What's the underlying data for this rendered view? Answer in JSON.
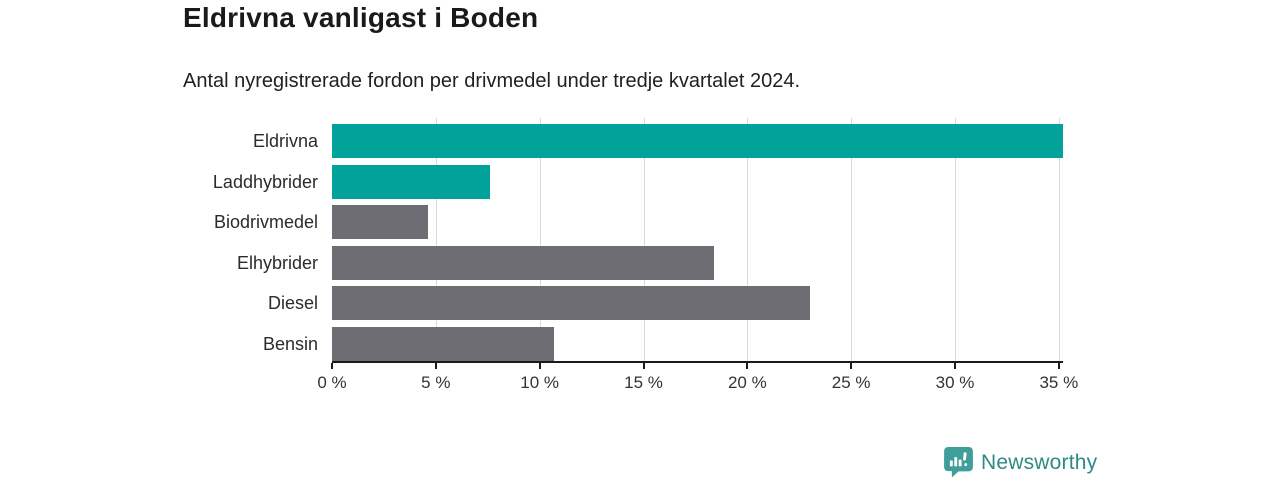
{
  "chart_data": {
    "type": "bar",
    "orientation": "horizontal",
    "title": "Eldrivna vanligast i Boden",
    "subtitle": "Antal nyregistrerade fordon per drivmedel under tredje kvartalet 2024.",
    "categories": [
      "Eldrivna",
      "Laddhybrider",
      "Biodrivmedel",
      "Elhybrider",
      "Diesel",
      "Bensin"
    ],
    "values": [
      35.2,
      7.6,
      4.6,
      18.4,
      23.0,
      10.7
    ],
    "unit": "%",
    "xlim": [
      0,
      35.2
    ],
    "x_ticks": [
      0,
      5,
      10,
      15,
      20,
      25,
      30,
      35
    ],
    "x_tick_labels": [
      "0 %",
      "5 %",
      "10 %",
      "15 %",
      "20 %",
      "25 %",
      "30 %",
      "35 %"
    ],
    "grid": true,
    "legend": "none",
    "bar_colors": [
      "#00a29a",
      "#00a29a",
      "#6d6d73",
      "#6d6d73",
      "#6d6d73",
      "#6d6d73"
    ],
    "highlight_color": "#00a29a",
    "default_color": "#6d6d73",
    "gridline_color": "#d9d9d9",
    "axis_color": "#1a1a1a"
  },
  "footer": {
    "brand": "Newsworthy",
    "brand_color": "#2f8a86",
    "brand_icon": "newsworthy-bubble-barchart-icon",
    "brand_icon_color": "#3f9e99"
  }
}
